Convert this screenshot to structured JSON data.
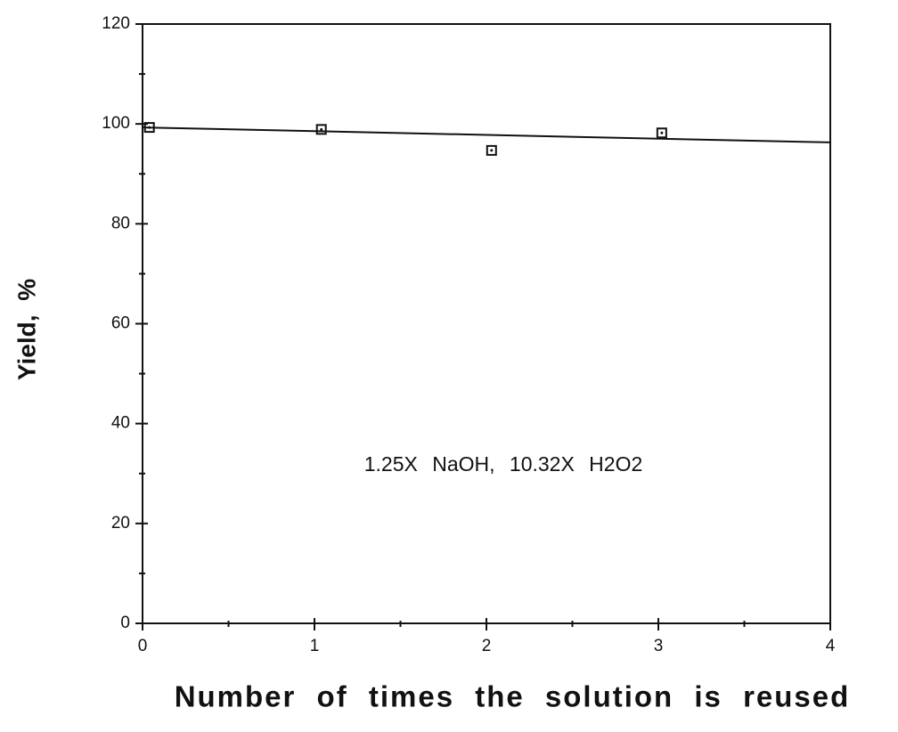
{
  "chart_data": {
    "type": "scatter",
    "xlabel": "Number of times the solution is reused",
    "ylabel": "Yield, %",
    "annotation": "1.25X NaOH, 10.32X H2O2",
    "series": [
      {
        "x": [
          0.04,
          1.04,
          2.03,
          3.02
        ],
        "values": [
          99.3,
          98.9,
          94.7,
          98.2
        ],
        "color": "#111111"
      }
    ],
    "fit_line": {
      "x": [
        0,
        4
      ],
      "values": [
        99.3,
        96.3
      ],
      "color": "#111111"
    },
    "xlim": [
      0,
      4
    ],
    "xticks": [
      0,
      1,
      2,
      3,
      4
    ],
    "xminorticks": [
      0.5,
      1.5,
      2.5,
      3.5
    ],
    "ylim": [
      0,
      120
    ],
    "yticks": [
      0,
      20,
      40,
      60,
      80,
      100,
      120
    ],
    "yminorticks": [
      10,
      30,
      50,
      70,
      90,
      110
    ]
  }
}
